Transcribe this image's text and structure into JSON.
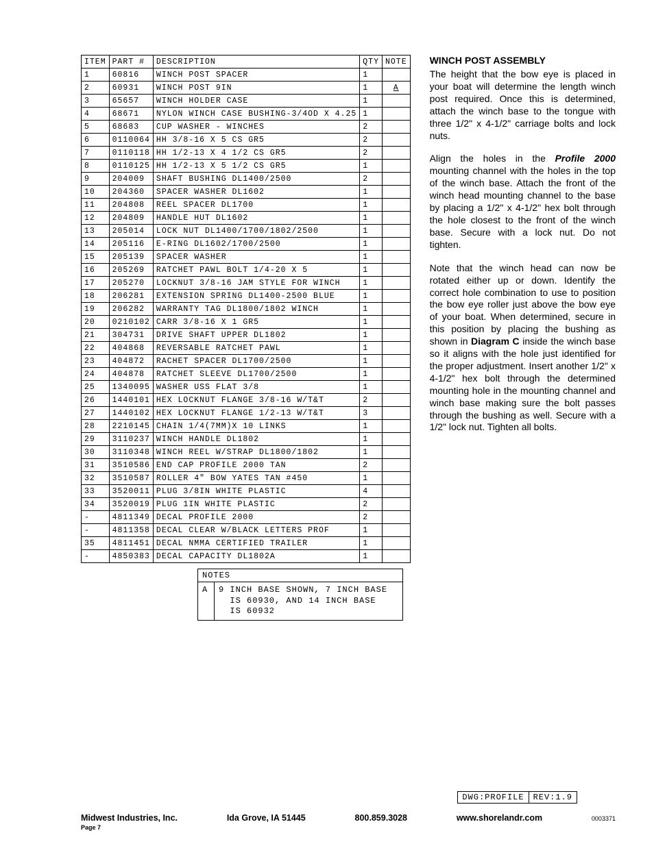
{
  "table": {
    "headers": [
      "ITEM",
      "PART #",
      "DESCRIPTION",
      "QTY",
      "NOTE"
    ],
    "rows": [
      [
        "1",
        "60816",
        "WINCH POST SPACER",
        "1",
        ""
      ],
      [
        "2",
        "60931",
        "WINCH POST 9IN",
        "1",
        "A"
      ],
      [
        "3",
        "65657",
        "WINCH HOLDER CASE",
        "1",
        ""
      ],
      [
        "4",
        "68671",
        "NYLON WINCH CASE BUSHING-3/4OD X 4.25",
        "1",
        ""
      ],
      [
        "5",
        "68683",
        "CUP WASHER - WINCHES",
        "2",
        ""
      ],
      [
        "6",
        "0110064",
        "HH 3/8-16 X 5 CS GR5",
        "2",
        ""
      ],
      [
        "7",
        "0110118",
        "HH 1/2-13 X 4 1/2 CS GR5",
        "2",
        ""
      ],
      [
        "8",
        "0110125",
        "HH 1/2-13 X 5 1/2 CS GR5",
        "1",
        ""
      ],
      [
        "9",
        "204009",
        "SHAFT BUSHING  DL1400/2500",
        "2",
        ""
      ],
      [
        "10",
        "204360",
        "SPACER WASHER  DL1602",
        "1",
        ""
      ],
      [
        "11",
        "204808",
        "REEL SPACER  DL1700",
        "1",
        ""
      ],
      [
        "12",
        "204809",
        "HANDLE HUT  DL1602",
        "1",
        ""
      ],
      [
        "13",
        "205014",
        "LOCK NUT  DL1400/1700/1802/2500",
        "1",
        ""
      ],
      [
        "14",
        "205116",
        "E-RING DL1602/1700/2500",
        "1",
        ""
      ],
      [
        "15",
        "205139",
        "SPACER WASHER",
        "1",
        ""
      ],
      [
        "16",
        "205269",
        "RATCHET PAWL BOLT 1/4-20 X 5",
        "1",
        ""
      ],
      [
        "17",
        "205270",
        "LOCKNUT 3/8-16 JAM STYLE FOR WINCH",
        "1",
        ""
      ],
      [
        "18",
        "206281",
        "EXTENSION SPRING DL1400-2500 BLUE",
        "1",
        ""
      ],
      [
        "19",
        "206282",
        "WARRANTY TAG DL1800/1802 WINCH",
        "1",
        ""
      ],
      [
        "20",
        "0210102",
        "CARR 3/8-16 X 1 GR5",
        "1",
        ""
      ],
      [
        "21",
        "304731",
        "DRIVE SHAFT UPPER  DL1802",
        "1",
        ""
      ],
      [
        "22",
        "404868",
        "REVERSABLE RATCHET PAWL",
        "1",
        ""
      ],
      [
        "23",
        "404872",
        "RACHET SPACER  DL1700/2500",
        "1",
        ""
      ],
      [
        "24",
        "404878",
        "RATCHET SLEEVE  DL1700/2500",
        "1",
        ""
      ],
      [
        "25",
        "1340095",
        "WASHER USS FLAT 3/8",
        "1",
        ""
      ],
      [
        "26",
        "1440101",
        "HEX LOCKNUT FLANGE 3/8-16 W/T&T",
        "2",
        ""
      ],
      [
        "27",
        "1440102",
        "HEX LOCKNUT FLANGE 1/2-13 W/T&T",
        "3",
        ""
      ],
      [
        "28",
        "2210145",
        "CHAIN 1/4(7MM)X 10 LINKS",
        "1",
        ""
      ],
      [
        "29",
        "3110237",
        "WINCH HANDLE  DL1802",
        "1",
        ""
      ],
      [
        "30",
        "3110348",
        "WINCH REEL W/STRAP  DL1800/1802",
        "1",
        ""
      ],
      [
        "31",
        "3510586",
        "END CAP PROFILE 2000 TAN",
        "2",
        ""
      ],
      [
        "32",
        "3510587",
        "ROLLER 4\" BOW YATES TAN #450",
        "1",
        ""
      ],
      [
        "33",
        "3520011",
        "PLUG  3/8IN WHITE PLASTIC",
        "4",
        ""
      ],
      [
        "34",
        "3520019",
        "PLUG  1IN WHITE PLASTIC",
        "2",
        ""
      ],
      [
        "-",
        "4811349",
        "DECAL PROFILE 2000",
        "2",
        ""
      ],
      [
        "-",
        "4811358",
        "DECAL CLEAR W/BLACK LETTERS PROF",
        "1",
        ""
      ],
      [
        "35",
        "4811451",
        " DECAL NMMA CERTIFIED TRAILER",
        "1",
        ""
      ],
      [
        "-",
        "4850383",
        "DECAL CAPACITY DL1802A",
        "1",
        ""
      ]
    ]
  },
  "notes": {
    "title": "NOTES",
    "key": "A",
    "text": "9 INCH BASE SHOWN, 7 INCH BASE\n  IS 60930, AND 14 INCH BASE\n  IS 60932"
  },
  "body": {
    "heading": "WINCH POST ASSEMBLY",
    "p1": "The height that the bow eye is placed in your boat will determine the length winch post required. Once this is determined, attach the winch base to the tongue with three 1/2\" x 4-1/2\" carriage bolts and lock nuts.",
    "p2a": "Align the holes in the ",
    "p2b": "Profile 2000",
    "p2c": " mounting channel with the holes in the top of the winch base. Attach the front of the winch head mounting channel to the base by placing a 1/2\" x 4-1/2\" hex bolt through the hole closest to the front of the winch base. Secure with a  lock nut. Do not tighten.",
    "p3a": "Note that the winch head can now be rotated either up or down. Identify the correct hole combination to use to position the bow eye roller just above the bow eye of your boat. When determined, secure in this position by placing the bushing as shown in ",
    "p3b": "Diagram C",
    "p3c": " inside the winch base so it aligns with the hole just identified for the proper adjustment. Insert another 1/2\" x 4-1/2\" hex bolt through the determined mounting hole in the mounting channel and winch base making sure the bolt passes through the bushing as well. Secure with a 1/2\" lock nut. Tighten all bolts."
  },
  "dwg": {
    "left": "DWG:PROFILE",
    "right": "REV:1.9"
  },
  "footer": {
    "company": "Midwest Industries, Inc.",
    "city": "Ida Grove, IA  51445",
    "phone": "800.859.3028",
    "url": "www.shorelandr.com",
    "docnum": "0003371",
    "page": "Page 7"
  }
}
